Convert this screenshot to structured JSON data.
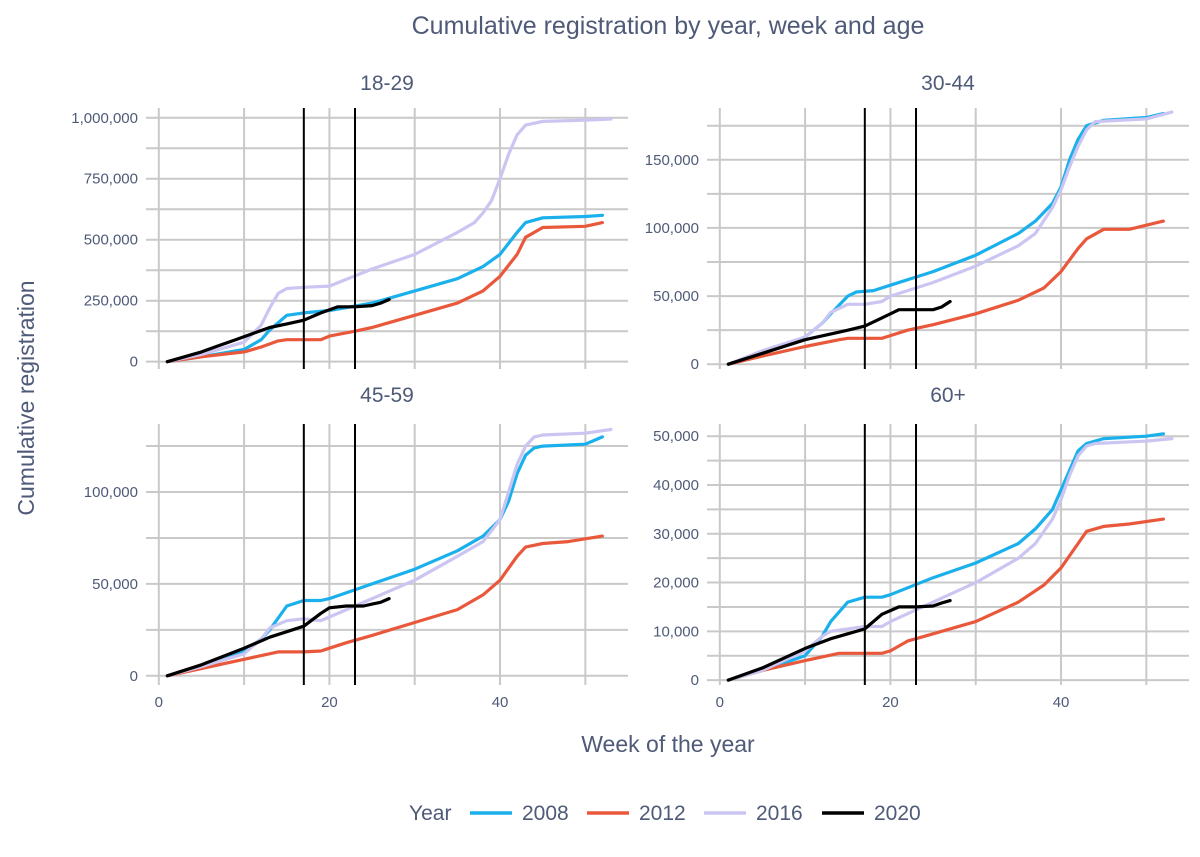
{
  "chart_data": {
    "type": "line",
    "title": "Cumulative registration by year, week and age",
    "xlabel": "Week of the year",
    "ylabel": "Cumulative registration",
    "xlim": [
      -1.5,
      55
    ],
    "x_ticks": [
      0,
      20,
      40
    ],
    "x_tick_labels": [
      "0",
      "20",
      "40"
    ],
    "reference_lines_x": [
      17,
      23
    ],
    "grid": true,
    "legend": {
      "title": "Year",
      "position": "bottom",
      "entries": [
        {
          "name": "2008",
          "color": "#1ab0ec"
        },
        {
          "name": "2012",
          "color": "#e9583b"
        },
        {
          "name": "2016",
          "color": "#cbc5f2"
        },
        {
          "name": "2020",
          "color": "#000000"
        }
      ]
    },
    "panels": [
      {
        "label": "18-29",
        "ylim": [
          -30000,
          1040000
        ],
        "y_ticks": [
          0,
          250000,
          500000,
          750000,
          1000000
        ],
        "y_tick_labels": [
          "0",
          "250,000",
          "500,000",
          "750,000",
          "1,000,000"
        ],
        "series": [
          {
            "name": "2008",
            "x": [
              1,
              5,
              10,
              12,
              13,
              15,
              17,
              20,
              25,
              30,
              35,
              38,
              40,
              42,
              43,
              45,
              50,
              52
            ],
            "y": [
              0,
              20000,
              50000,
              90000,
              130000,
              190000,
              200000,
              210000,
              240000,
              290000,
              340000,
              390000,
              440000,
              530000,
              570000,
              590000,
              595000,
              600000
            ]
          },
          {
            "name": "2012",
            "x": [
              1,
              5,
              10,
              12,
              14,
              15,
              17,
              19,
              20,
              23,
              25,
              30,
              35,
              38,
              40,
              42,
              43,
              45,
              50,
              52
            ],
            "y": [
              0,
              20000,
              40000,
              60000,
              85000,
              90000,
              90000,
              90000,
              105000,
              125000,
              140000,
              190000,
              240000,
              290000,
              350000,
              440000,
              510000,
              550000,
              555000,
              570000
            ]
          },
          {
            "name": "2016",
            "x": [
              1,
              5,
              10,
              12,
              13,
              14,
              15,
              17,
              20,
              25,
              30,
              35,
              37,
              38,
              39,
              40,
              41,
              42,
              43,
              45,
              50,
              53
            ],
            "y": [
              0,
              30000,
              80000,
              150000,
              220000,
              280000,
              300000,
              305000,
              310000,
              380000,
              440000,
              530000,
              570000,
              610000,
              660000,
              750000,
              850000,
              930000,
              970000,
              985000,
              990000,
              995000
            ]
          },
          {
            "name": "2020",
            "x": [
              1,
              3,
              5,
              7,
              9,
              11,
              13,
              15,
              17,
              19,
              21,
              23,
              25,
              26,
              27
            ],
            "y": [
              0,
              20000,
              40000,
              65000,
              90000,
              115000,
              140000,
              155000,
              170000,
              200000,
              225000,
              225000,
              230000,
              240000,
              255000
            ]
          }
        ]
      },
      {
        "label": "30-44",
        "ylim": [
          -3500,
          188000
        ],
        "y_ticks": [
          0,
          50000,
          100000,
          150000
        ],
        "y_tick_labels": [
          "0",
          "50,000",
          "100,000",
          "150,000"
        ],
        "series": [
          {
            "name": "2008",
            "x": [
              1,
              5,
              10,
              12,
              13,
              15,
              16,
              18,
              20,
              25,
              30,
              35,
              37,
              39,
              40,
              41,
              42,
              43,
              45,
              50,
              52
            ],
            "y": [
              0,
              8000,
              20000,
              30000,
              37000,
              50000,
              53000,
              54000,
              58000,
              68000,
              80000,
              96000,
              105000,
              118000,
              130000,
              150000,
              165000,
              175000,
              179000,
              181000,
              184000
            ]
          },
          {
            "name": "2012",
            "x": [
              1,
              5,
              10,
              14,
              15,
              17,
              19,
              20,
              22,
              25,
              30,
              35,
              38,
              40,
              42,
              43,
              45,
              48,
              52
            ],
            "y": [
              0,
              6000,
              13000,
              18000,
              19000,
              19000,
              19000,
              21000,
              25000,
              29000,
              37000,
              47000,
              56000,
              68000,
              85000,
              92000,
              99000,
              99000,
              105000
            ]
          },
          {
            "name": "2016",
            "x": [
              1,
              5,
              10,
              12,
              13,
              15,
              17,
              19,
              20,
              25,
              30,
              35,
              37,
              39,
              40,
              41,
              42,
              43,
              44,
              50,
              53
            ],
            "y": [
              0,
              10000,
              20000,
              30000,
              38000,
              44000,
              44000,
              46000,
              50000,
              60000,
              72000,
              87000,
              96000,
              115000,
              128000,
              145000,
              160000,
              172000,
              178000,
              180000,
              185000
            ]
          },
          {
            "name": "2020",
            "x": [
              1,
              5,
              10,
              15,
              17,
              19,
              21,
              22,
              24,
              25,
              26,
              27
            ],
            "y": [
              0,
              8000,
              18000,
              25000,
              28000,
              34000,
              40000,
              40000,
              40000,
              40000,
              42000,
              46000
            ]
          }
        ]
      },
      {
        "label": "45-59",
        "ylim": [
          -5000,
          137000
        ],
        "y_ticks": [
          0,
          50000,
          100000
        ],
        "y_tick_labels": [
          "0",
          "50,000",
          "100,000"
        ],
        "series": [
          {
            "name": "2008",
            "x": [
              1,
              5,
              10,
              12,
              13,
              15,
              17,
              19,
              20,
              25,
              30,
              35,
              38,
              40,
              41,
              42,
              43,
              44,
              45,
              50,
              52
            ],
            "y": [
              0,
              5000,
              13000,
              20000,
              25000,
              38000,
              41000,
              41000,
              42000,
              50000,
              58000,
              68000,
              76000,
              85000,
              95000,
              110000,
              120000,
              124000,
              125000,
              126000,
              130000
            ]
          },
          {
            "name": "2012",
            "x": [
              1,
              5,
              10,
              14,
              15,
              17,
              19,
              20,
              22,
              25,
              30,
              35,
              38,
              40,
              42,
              43,
              45,
              48,
              52
            ],
            "y": [
              0,
              4000,
              9000,
              13000,
              13000,
              13000,
              13500,
              15000,
              18000,
              22000,
              29000,
              36000,
              44000,
              52000,
              65000,
              70000,
              72000,
              73000,
              76000
            ]
          },
          {
            "name": "2016",
            "x": [
              1,
              5,
              10,
              12,
              13,
              15,
              17,
              19,
              20,
              25,
              30,
              35,
              38,
              40,
              41,
              42,
              43,
              44,
              45,
              50,
              53
            ],
            "y": [
              0,
              5000,
              12000,
              20000,
              26000,
              30000,
              31000,
              30000,
              32000,
              42000,
              52000,
              65000,
              73000,
              85000,
              100000,
              115000,
              125000,
              130000,
              131000,
              132000,
              134000
            ]
          },
          {
            "name": "2020",
            "x": [
              1,
              5,
              10,
              13,
              15,
              17,
              19,
              20,
              22,
              24,
              25,
              26,
              27
            ],
            "y": [
              0,
              6000,
              15000,
              21000,
              24000,
              27000,
              34000,
              37000,
              38000,
              38000,
              39000,
              40000,
              42000
            ]
          }
        ]
      },
      {
        "label": "60+",
        "ylim": [
          -1000,
          52500
        ],
        "y_ticks": [
          0,
          10000,
          20000,
          30000,
          40000,
          50000
        ],
        "y_tick_labels": [
          "0",
          "10,000",
          "20,000",
          "30,000",
          "40,000",
          "50,000"
        ],
        "series": [
          {
            "name": "2008",
            "x": [
              1,
              5,
              10,
              12,
              13,
              15,
              17,
              19,
              20,
              25,
              30,
              35,
              37,
              39,
              40,
              41,
              42,
              43,
              44,
              45,
              50,
              52
            ],
            "y": [
              0,
              2000,
              5000,
              9000,
              12000,
              16000,
              17000,
              17000,
              17500,
              21000,
              24000,
              28000,
              31000,
              35000,
              39000,
              43000,
              47000,
              48500,
              49000,
              49500,
              50000,
              50500
            ]
          },
          {
            "name": "2012",
            "x": [
              1,
              5,
              10,
              14,
              15,
              17,
              19,
              20,
              22,
              25,
              30,
              35,
              38,
              40,
              42,
              43,
              45,
              48,
              52
            ],
            "y": [
              0,
              2000,
              4000,
              5500,
              5500,
              5500,
              5500,
              6000,
              8000,
              9500,
              12000,
              16000,
              19500,
              23000,
              28000,
              30500,
              31500,
              32000,
              33000
            ]
          },
          {
            "name": "2016",
            "x": [
              1,
              5,
              10,
              12,
              13,
              15,
              17,
              19,
              20,
              25,
              30,
              35,
              37,
              39,
              40,
              41,
              42,
              43,
              44,
              50,
              53
            ],
            "y": [
              0,
              2000,
              6000,
              9000,
              10000,
              10500,
              11000,
              11000,
              12000,
              16000,
              20000,
              25000,
              28000,
              33000,
              37000,
              42000,
              46000,
              48000,
              48500,
              49000,
              49500
            ]
          },
          {
            "name": "2020",
            "x": [
              1,
              5,
              10,
              13,
              15,
              17,
              19,
              21,
              23,
              25,
              26,
              27
            ],
            "y": [
              0,
              2500,
              6500,
              8500,
              9500,
              10500,
              13500,
              15000,
              15000,
              15200,
              15800,
              16300
            ]
          }
        ]
      }
    ]
  }
}
